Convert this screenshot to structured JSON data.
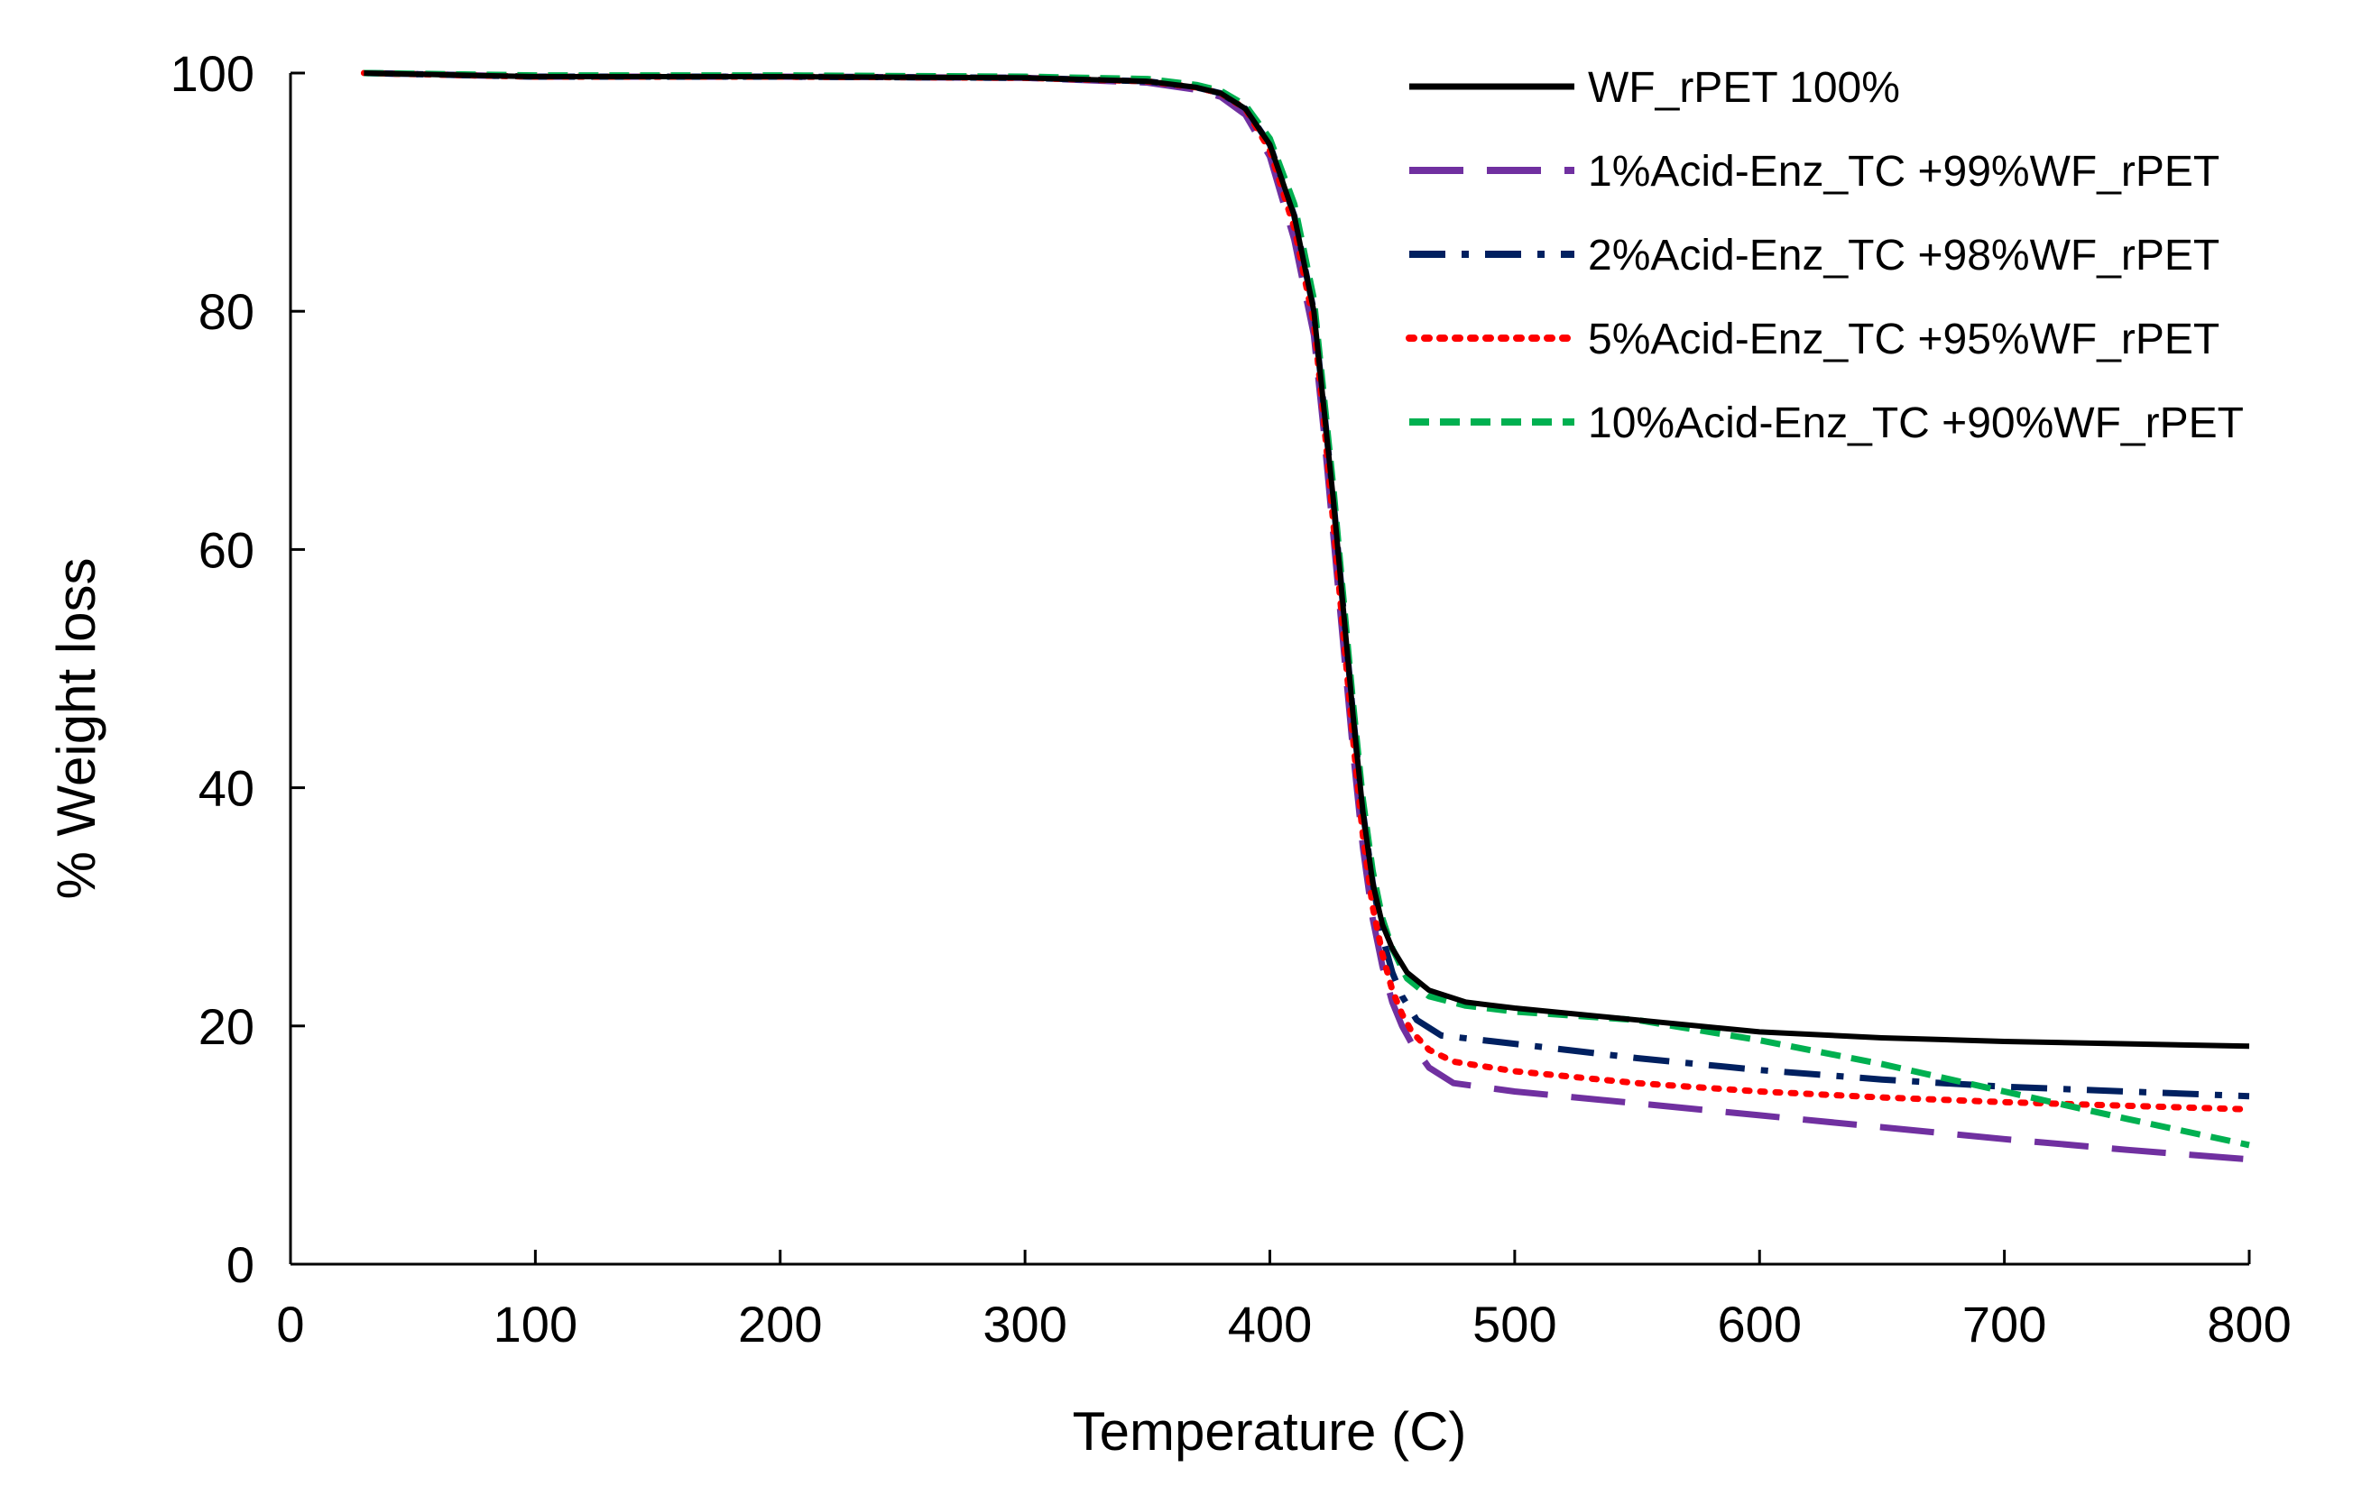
{
  "chart_data": {
    "type": "line",
    "title": "",
    "xlabel": "Temperature (C)",
    "ylabel": "% Weight loss",
    "xlim": [
      0,
      800
    ],
    "ylim": [
      0,
      100
    ],
    "xticks": [
      0,
      100,
      200,
      300,
      400,
      500,
      600,
      700,
      800
    ],
    "yticks": [
      0,
      20,
      40,
      60,
      80,
      100
    ],
    "grid": false,
    "legend_position": "top-right",
    "series": [
      {
        "name": "WF_rPET 100%",
        "color": "#000000",
        "dash": "solid",
        "points": [
          [
            30,
            100
          ],
          [
            100,
            99.7
          ],
          [
            200,
            99.7
          ],
          [
            300,
            99.6
          ],
          [
            350,
            99.3
          ],
          [
            370,
            98.8
          ],
          [
            380,
            98.3
          ],
          [
            390,
            97
          ],
          [
            400,
            94
          ],
          [
            410,
            88
          ],
          [
            418,
            80
          ],
          [
            422,
            72
          ],
          [
            426,
            64
          ],
          [
            430,
            55
          ],
          [
            434,
            46
          ],
          [
            438,
            38
          ],
          [
            442,
            32
          ],
          [
            446,
            28.5
          ],
          [
            450,
            26.5
          ],
          [
            456,
            24.5
          ],
          [
            465,
            23
          ],
          [
            480,
            22
          ],
          [
            500,
            21.5
          ],
          [
            550,
            20.5
          ],
          [
            600,
            19.5
          ],
          [
            650,
            19
          ],
          [
            700,
            18.7
          ],
          [
            750,
            18.5
          ],
          [
            800,
            18.3
          ]
        ]
      },
      {
        "name": "1%Acid-Enz_TC +99%WF_rPET",
        "color": "#7030A0",
        "dash": "long-dash",
        "points": [
          [
            30,
            100
          ],
          [
            100,
            99.7
          ],
          [
            200,
            99.7
          ],
          [
            300,
            99.6
          ],
          [
            350,
            99.2
          ],
          [
            370,
            98.6
          ],
          [
            380,
            98
          ],
          [
            390,
            96.5
          ],
          [
            400,
            93
          ],
          [
            410,
            86
          ],
          [
            418,
            78
          ],
          [
            422,
            70
          ],
          [
            426,
            61
          ],
          [
            430,
            52
          ],
          [
            434,
            43
          ],
          [
            438,
            35
          ],
          [
            442,
            29
          ],
          [
            446,
            25
          ],
          [
            450,
            22
          ],
          [
            454,
            20
          ],
          [
            458,
            18.5
          ],
          [
            465,
            16.5
          ],
          [
            475,
            15.2
          ],
          [
            500,
            14.5
          ],
          [
            550,
            13.5
          ],
          [
            600,
            12.5
          ],
          [
            650,
            11.5
          ],
          [
            700,
            10.5
          ],
          [
            750,
            9.6
          ],
          [
            800,
            8.8
          ]
        ]
      },
      {
        "name": "2%Acid-Enz_TC +98%WF_rPET",
        "color": "#002060",
        "dash": "dash-dot",
        "points": [
          [
            30,
            100
          ],
          [
            100,
            99.7
          ],
          [
            200,
            99.7
          ],
          [
            300,
            99.6
          ],
          [
            350,
            99.3
          ],
          [
            370,
            98.8
          ],
          [
            380,
            98.3
          ],
          [
            390,
            97
          ],
          [
            400,
            94
          ],
          [
            410,
            88
          ],
          [
            418,
            80
          ],
          [
            422,
            72
          ],
          [
            426,
            64
          ],
          [
            430,
            55
          ],
          [
            434,
            46
          ],
          [
            438,
            38
          ],
          [
            442,
            32
          ],
          [
            446,
            27.5
          ],
          [
            450,
            24.5
          ],
          [
            454,
            22.5
          ],
          [
            460,
            20.5
          ],
          [
            470,
            19.2
          ],
          [
            500,
            18.5
          ],
          [
            550,
            17.3
          ],
          [
            600,
            16.3
          ],
          [
            650,
            15.5
          ],
          [
            700,
            14.9
          ],
          [
            750,
            14.5
          ],
          [
            800,
            14.1
          ]
        ]
      },
      {
        "name": "5%Acid-Enz_TC +95%WF_rPET",
        "color": "#FF0000",
        "dash": "dotted",
        "points": [
          [
            30,
            100
          ],
          [
            100,
            99.7
          ],
          [
            200,
            99.7
          ],
          [
            300,
            99.6
          ],
          [
            350,
            99.3
          ],
          [
            370,
            98.8
          ],
          [
            380,
            98.3
          ],
          [
            390,
            97
          ],
          [
            400,
            93.5
          ],
          [
            410,
            87
          ],
          [
            418,
            79
          ],
          [
            422,
            71
          ],
          [
            426,
            62
          ],
          [
            430,
            53
          ],
          [
            434,
            44
          ],
          [
            438,
            36
          ],
          [
            442,
            30
          ],
          [
            446,
            26
          ],
          [
            450,
            23
          ],
          [
            454,
            21
          ],
          [
            458,
            19.5
          ],
          [
            465,
            18
          ],
          [
            475,
            17
          ],
          [
            500,
            16.2
          ],
          [
            550,
            15.2
          ],
          [
            600,
            14.5
          ],
          [
            650,
            14
          ],
          [
            700,
            13.6
          ],
          [
            750,
            13.3
          ],
          [
            800,
            13
          ]
        ]
      },
      {
        "name": "10%Acid-Enz_TC +90%WF_rPET",
        "color": "#00B050",
        "dash": "short-dash",
        "points": [
          [
            30,
            100
          ],
          [
            100,
            99.8
          ],
          [
            200,
            99.8
          ],
          [
            300,
            99.7
          ],
          [
            350,
            99.5
          ],
          [
            370,
            99
          ],
          [
            380,
            98.5
          ],
          [
            390,
            97.3
          ],
          [
            400,
            94.5
          ],
          [
            410,
            89
          ],
          [
            418,
            81
          ],
          [
            422,
            73
          ],
          [
            426,
            65
          ],
          [
            430,
            56
          ],
          [
            434,
            47
          ],
          [
            438,
            39
          ],
          [
            442,
            33
          ],
          [
            446,
            29
          ],
          [
            450,
            26.5
          ],
          [
            456,
            24
          ],
          [
            465,
            22.5
          ],
          [
            480,
            21.7
          ],
          [
            500,
            21.2
          ],
          [
            550,
            20.5
          ],
          [
            600,
            18.8
          ],
          [
            650,
            16.8
          ],
          [
            700,
            14.5
          ],
          [
            750,
            12.2
          ],
          [
            800,
            10
          ]
        ]
      }
    ]
  }
}
